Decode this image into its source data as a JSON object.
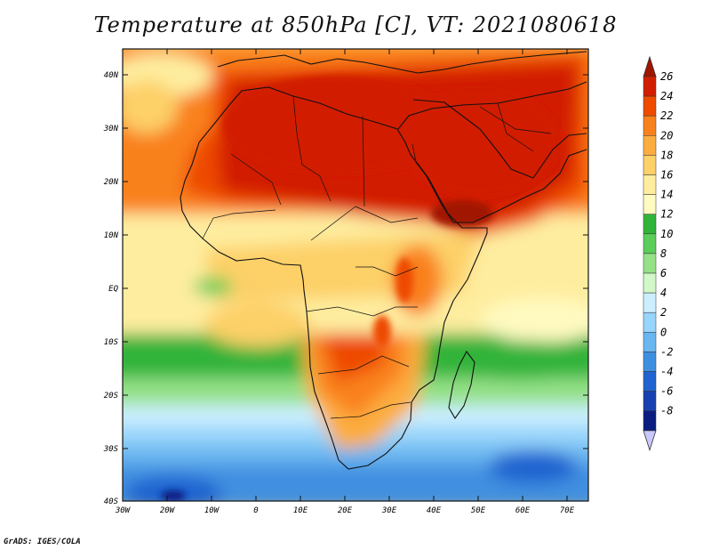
{
  "title": "Temperature at 850hPa [C], VT: 2021080618",
  "credit": "GrADS: IGES/COLA",
  "map": {
    "region": "Africa and Middle East",
    "projection": "lat-lon",
    "lon_range": [
      -30,
      75
    ],
    "lat_range": [
      -40,
      45
    ],
    "field": "850hPa temperature",
    "units": "C"
  },
  "axes": {
    "lat_labels": [
      "40N",
      "30N",
      "20N",
      "10N",
      "EQ",
      "10S",
      "20S",
      "30S",
      "40S"
    ],
    "lon_labels": [
      "30W",
      "20W",
      "10W",
      "0",
      "10E",
      "20E",
      "30E",
      "40E",
      "50E",
      "60E",
      "70E"
    ]
  },
  "colorbar": {
    "labels": [
      "26",
      "24",
      "22",
      "20",
      "18",
      "16",
      "14",
      "12",
      "10",
      "8",
      "6",
      "4",
      "2",
      "0",
      "-2",
      "-4",
      "-6",
      "-8"
    ],
    "colors": [
      "#a01400",
      "#d21e00",
      "#ee4a00",
      "#f9811d",
      "#fcad3f",
      "#fdd068",
      "#feed9f",
      "#fffac0",
      "#31b43a",
      "#5ccd5a",
      "#94e187",
      "#d2f7c8",
      "#ccefff",
      "#98d5fa",
      "#6ab6f0",
      "#3f8fe0",
      "#1f64d0",
      "#1840b0",
      "#0a1e80",
      "#c8c8ff"
    ],
    "over_color": "#a01400",
    "under_color": "#c8c8ff"
  }
}
